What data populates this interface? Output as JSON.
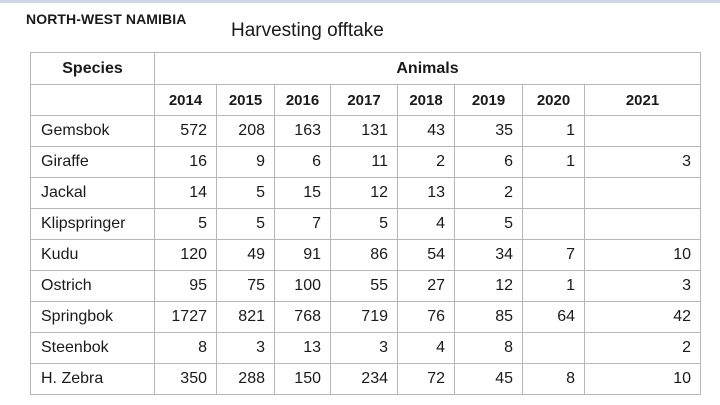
{
  "region": "NORTH-WEST NAMIBIA",
  "title": "Harvesting offtake",
  "table": {
    "species_header": "Species",
    "animals_header": "Animals",
    "years": [
      "2014",
      "2015",
      "2016",
      "2017",
      "2018",
      "2019",
      "2020",
      "2021"
    ],
    "rows": [
      {
        "species": "Gemsbok",
        "values": [
          "572",
          "208",
          "163",
          "131",
          "43",
          "35",
          "1",
          ""
        ]
      },
      {
        "species": "Giraffe",
        "values": [
          "16",
          "9",
          "6",
          "11",
          "2",
          "6",
          "1",
          "3"
        ]
      },
      {
        "species": "Jackal",
        "values": [
          "14",
          "5",
          "15",
          "12",
          "13",
          "2",
          "",
          ""
        ]
      },
      {
        "species": "Klipspringer",
        "values": [
          "5",
          "5",
          "7",
          "5",
          "4",
          "5",
          "",
          ""
        ]
      },
      {
        "species": "Kudu",
        "values": [
          "120",
          "49",
          "91",
          "86",
          "54",
          "34",
          "7",
          "10"
        ]
      },
      {
        "species": "Ostrich",
        "values": [
          "95",
          "75",
          "100",
          "55",
          "27",
          "12",
          "1",
          "3"
        ]
      },
      {
        "species": "Springbok",
        "values": [
          "1727",
          "821",
          "768",
          "719",
          "76",
          "85",
          "64",
          "42"
        ]
      },
      {
        "species": "Steenbok",
        "values": [
          "8",
          "3",
          "13",
          "3",
          "4",
          "8",
          "",
          "2"
        ]
      },
      {
        "species": "H. Zebra",
        "values": [
          "350",
          "288",
          "150",
          "234",
          "72",
          "45",
          "8",
          "10"
        ]
      }
    ]
  }
}
